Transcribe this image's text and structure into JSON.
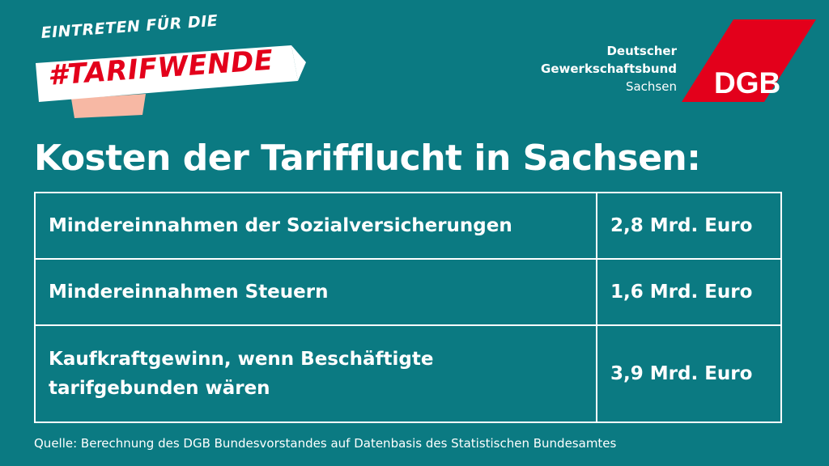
{
  "campaign": {
    "line1": "EINTRETEN FÜR DIE",
    "hashtag": "#TARIFWENDE"
  },
  "brand": {
    "line1": "Deutscher",
    "line2": "Gewerkschaftsbund",
    "line3": "Sachsen",
    "logo_text": "DGB",
    "red": "#e3001b",
    "salmon": "#f7b8a4",
    "background": "#0b7a82"
  },
  "headline": "Kosten der Tarifflucht in Sachsen:",
  "table": {
    "rows": [
      {
        "label": "Mindereinnahmen  der Sozialversicherungen",
        "value": "2,8 Mrd. Euro"
      },
      {
        "label": "Mindereinnahmen  Steuern",
        "value": "1,6 Mrd. Euro"
      },
      {
        "label": "Kaufkraftgewinn,  wenn Beschäftigte tarifgebunden wären",
        "value": "3,9 Mrd. Euro"
      }
    ]
  },
  "source": "Quelle: Berechnung des DGB Bundesvorstandes auf Datenbasis des Statistischen Bundesamtes"
}
